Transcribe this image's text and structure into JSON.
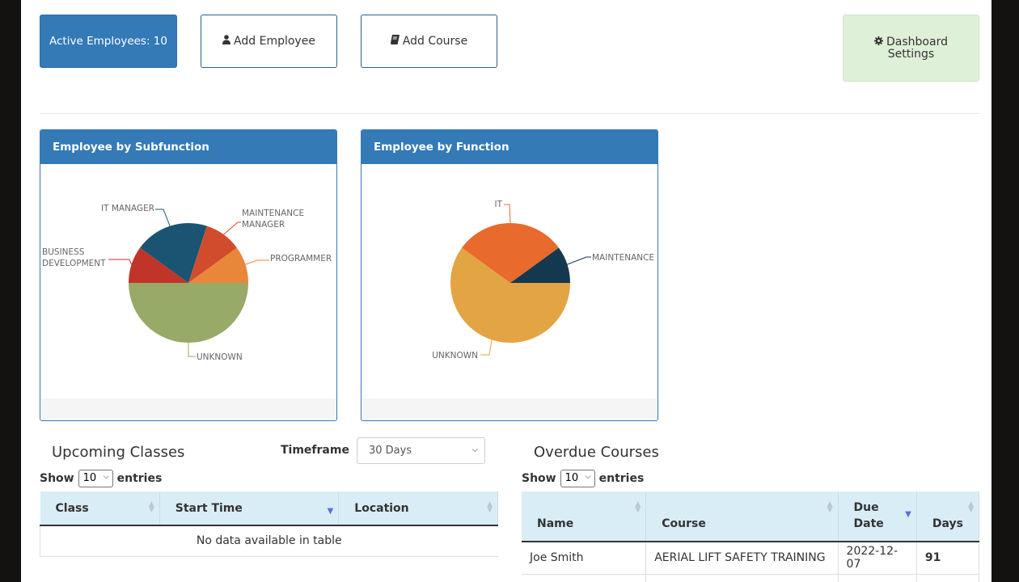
{
  "toolbar": {
    "active_employees_label": "Active Employees: 10",
    "add_employee_label": "Add Employee",
    "add_course_label": "Add Course",
    "dashboard_settings_line1": "Dashboard",
    "dashboard_settings_line2": "Settings"
  },
  "panels": {
    "subfunction_title": "Employee by Subfunction",
    "function_title": "Employee by Function"
  },
  "chart_data": [
    {
      "type": "pie",
      "title": "Employee by Subfunction",
      "slices": [
        {
          "label": "UNKNOWN",
          "value": 5,
          "color": "#97aa67"
        },
        {
          "label": "BUSINESS DEVELOPMENT",
          "value": 1,
          "color": "#c0342a"
        },
        {
          "label": "IT MANAGER",
          "value": 2,
          "color": "#1a5472"
        },
        {
          "label": "MAINTENANCE MANAGER",
          "value": 1,
          "color": "#d14c2c"
        },
        {
          "label": "PROGRAMMER",
          "value": 1,
          "color": "#e8873a"
        }
      ]
    },
    {
      "type": "pie",
      "title": "Employee by Function",
      "slices": [
        {
          "label": "UNKNOWN",
          "value": 6,
          "color": "#e3a443"
        },
        {
          "label": "IT",
          "value": 3,
          "color": "#e86a2c"
        },
        {
          "label": "MAINTENANCE",
          "value": 1,
          "color": "#143850"
        }
      ]
    }
  ],
  "upcoming": {
    "title": "Upcoming Classes",
    "timeframe_label": "Timeframe",
    "timeframe_value": "30 Days",
    "show_label": "Show",
    "entries_value": "10",
    "entries_label": "entries",
    "columns": [
      "Class",
      "Start Time",
      "Location"
    ],
    "empty_text": "No data available in table"
  },
  "overdue": {
    "title": "Overdue Courses",
    "show_label": "Show",
    "entries_value": "10",
    "entries_label": "entries",
    "columns": [
      "Name",
      "Course",
      "Due\nDate",
      "Days"
    ],
    "rows": [
      {
        "name": "Joe Smith",
        "course": "AERIAL LIFT SAFETY TRAINING",
        "due": "2022-12-07",
        "days": "91"
      }
    ]
  }
}
